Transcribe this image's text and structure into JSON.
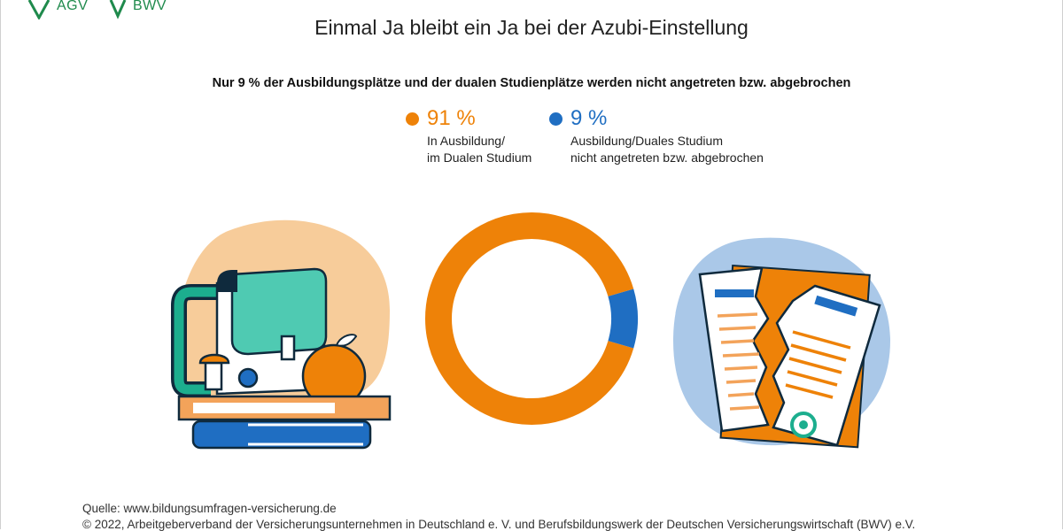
{
  "logos": {
    "agv": "AGV",
    "bwv": "BWV",
    "brand_color": "#1f8a4c"
  },
  "title": "Einmal Ja bleibt ein Ja bei der Azubi-Einstellung",
  "subtitle": "Nur 9 % der Ausbildungsplätze und der dualen Studienplätze werden nicht angetreten bzw. abgebrochen",
  "legend": [
    {
      "value_label": "91 %",
      "line1": "In Ausbildung/",
      "line2": "im Dualen Studium",
      "color": "#ee8208"
    },
    {
      "value_label": "9 %",
      "line1": "Ausbildung/Duales Studium",
      "line2": "nicht angetreten bzw. abgebrochen",
      "color": "#1f6ec2"
    }
  ],
  "chart_data": {
    "type": "pie",
    "donut": true,
    "categories": [
      "In Ausbildung/im Dualen Studium",
      "Ausbildung/Duales Studium nicht angetreten bzw. abgebrochen"
    ],
    "values": [
      91,
      9
    ],
    "unit": "%",
    "colors": [
      "#ee8208",
      "#1f6ec2"
    ]
  },
  "footer": {
    "source": "Quelle: www.bildungsumfragen-versicherung.de",
    "copyright": "© 2022,  Arbeitgeberverband der Versicherungsunternehmen in Deutschland e. V. und Berufsbildungswerk der Deutschen Versicherungswirtschaft (BWV) e.V."
  },
  "illustrations": {
    "left": "school-supplies-illustration",
    "right": "torn-contract-illustration"
  }
}
